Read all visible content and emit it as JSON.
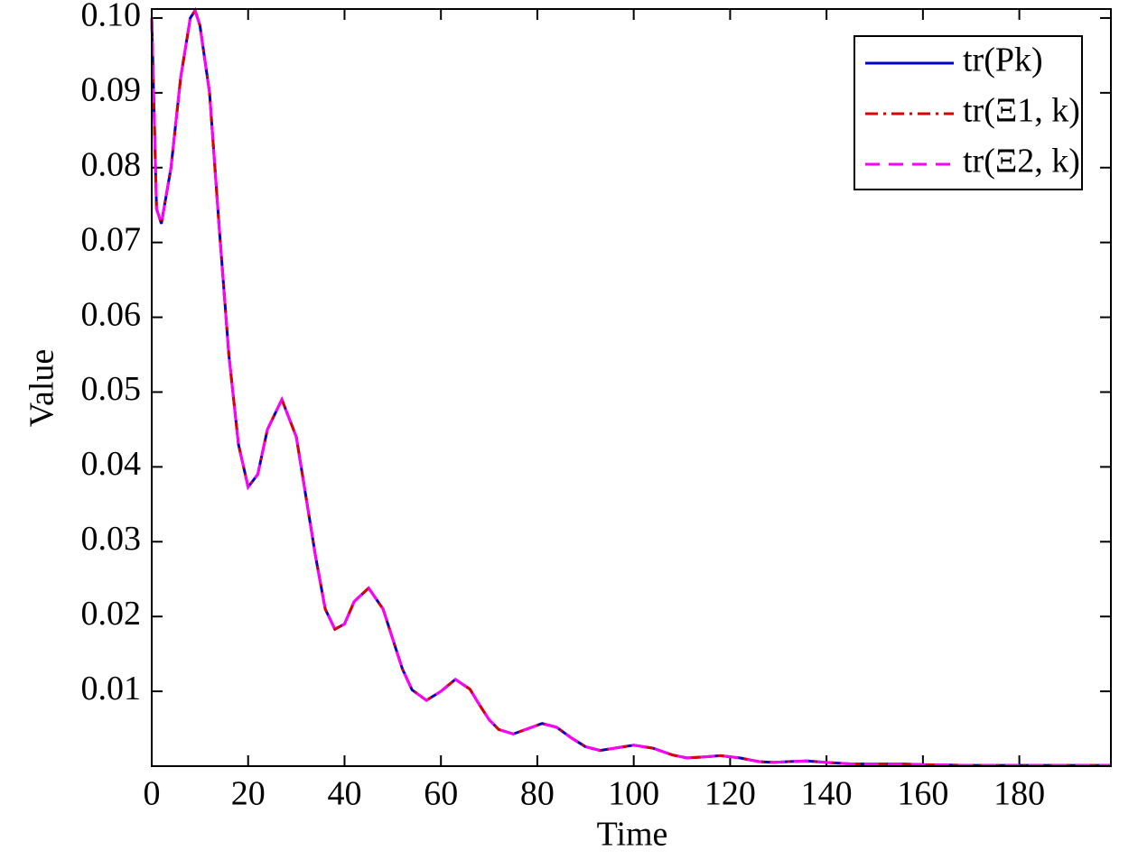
{
  "chart_data": {
    "type": "line",
    "x_label": "Time",
    "y_label": "Value",
    "x": [
      0,
      1,
      2,
      4,
      6,
      8,
      9,
      10,
      12,
      14,
      16,
      18,
      20,
      22,
      24,
      27,
      30,
      32,
      34,
      36,
      38,
      40,
      42,
      45,
      48,
      50,
      52,
      54,
      57,
      60,
      63,
      66,
      68,
      70,
      72,
      75,
      78,
      81,
      84,
      87,
      90,
      93,
      96,
      100,
      104,
      108,
      111,
      114,
      118,
      122,
      126,
      129,
      132,
      136,
      140,
      145,
      150,
      155,
      160,
      170,
      180,
      190,
      199
    ],
    "series": [
      {
        "name": "tr(Pk)",
        "color": "#0000cc",
        "dash": "solid",
        "values": [
          0.1,
          0.0745,
          0.0725,
          0.08,
          0.092,
          0.1,
          0.101,
          0.099,
          0.09,
          0.072,
          0.055,
          0.043,
          0.0373,
          0.039,
          0.045,
          0.049,
          0.044,
          0.036,
          0.028,
          0.021,
          0.0183,
          0.019,
          0.022,
          0.0238,
          0.021,
          0.017,
          0.013,
          0.0102,
          0.0088,
          0.01,
          0.0116,
          0.0103,
          0.0082,
          0.0062,
          0.0049,
          0.0043,
          0.005,
          0.0057,
          0.0052,
          0.0038,
          0.0026,
          0.0021,
          0.0024,
          0.0028,
          0.0024,
          0.0015,
          0.0011,
          0.0012,
          0.0014,
          0.0011,
          0.0006,
          0.0005,
          0.0006,
          0.0007,
          0.0005,
          0.0003,
          0.0003,
          0.0003,
          0.0002,
          0.0001,
          0.0001,
          0.0001,
          0.0001
        ]
      },
      {
        "name": "tr(Ξ1, k)",
        "color": "#dd0000",
        "dash": "dashdot",
        "values": [
          0.1,
          0.0745,
          0.0725,
          0.08,
          0.092,
          0.1,
          0.101,
          0.099,
          0.09,
          0.072,
          0.055,
          0.043,
          0.0373,
          0.039,
          0.045,
          0.049,
          0.044,
          0.036,
          0.028,
          0.021,
          0.0183,
          0.019,
          0.022,
          0.0238,
          0.021,
          0.017,
          0.013,
          0.0102,
          0.0088,
          0.01,
          0.0116,
          0.0103,
          0.0082,
          0.0062,
          0.0049,
          0.0043,
          0.005,
          0.0057,
          0.0052,
          0.0038,
          0.0026,
          0.0021,
          0.0024,
          0.0028,
          0.0024,
          0.0015,
          0.0011,
          0.0012,
          0.0014,
          0.0011,
          0.0006,
          0.0005,
          0.0006,
          0.0007,
          0.0005,
          0.0003,
          0.0003,
          0.0003,
          0.0002,
          0.0001,
          0.0001,
          0.0001,
          0.0001
        ]
      },
      {
        "name": "tr(Ξ2, k)",
        "color": "#ff00ff",
        "dash": "dashed",
        "values": [
          0.1,
          0.0745,
          0.0725,
          0.08,
          0.092,
          0.1,
          0.101,
          0.099,
          0.09,
          0.072,
          0.055,
          0.043,
          0.0373,
          0.039,
          0.045,
          0.049,
          0.044,
          0.036,
          0.028,
          0.021,
          0.0183,
          0.019,
          0.022,
          0.0238,
          0.021,
          0.017,
          0.013,
          0.0102,
          0.0088,
          0.01,
          0.0116,
          0.0103,
          0.0082,
          0.0062,
          0.0049,
          0.0043,
          0.005,
          0.0057,
          0.0052,
          0.0038,
          0.0026,
          0.0021,
          0.0024,
          0.0028,
          0.0024,
          0.0015,
          0.0011,
          0.0012,
          0.0014,
          0.0011,
          0.0006,
          0.0005,
          0.0006,
          0.0007,
          0.0005,
          0.0003,
          0.0003,
          0.0003,
          0.0002,
          0.0001,
          0.0001,
          0.0001,
          0.0001
        ]
      }
    ],
    "xlim": [
      0,
      199
    ],
    "ylim": [
      0,
      0.1012
    ],
    "xticks": [
      0,
      20,
      40,
      60,
      80,
      100,
      120,
      140,
      160,
      180
    ],
    "yticks": [
      0.01,
      0.02,
      0.03,
      0.04,
      0.05,
      0.06,
      0.07,
      0.08,
      0.09,
      {
        "value": 0.1,
        "label": "0.10"
      }
    ],
    "legend": "upper right",
    "grid": false
  }
}
